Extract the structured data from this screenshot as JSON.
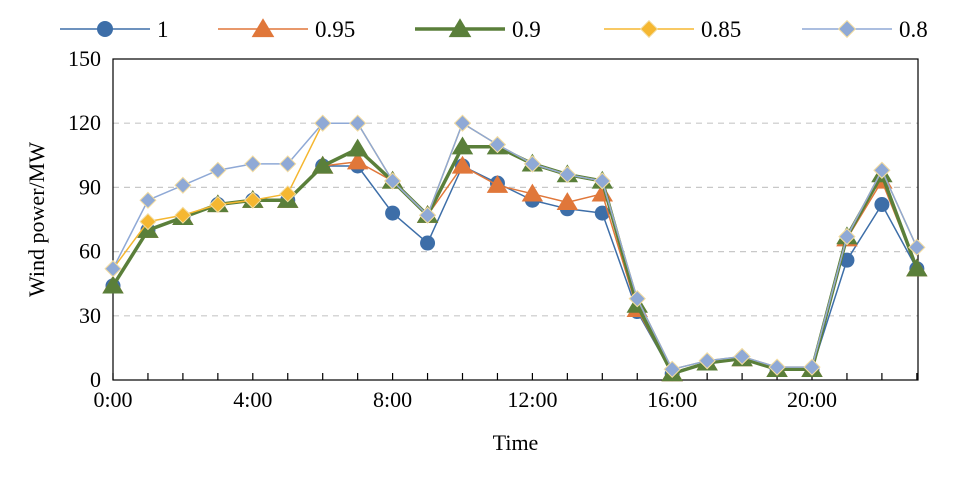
{
  "chart_data": {
    "type": "line",
    "title": "",
    "xlabel": "Time",
    "ylabel": "Wind power/MW",
    "ylim": [
      0,
      150
    ],
    "yticks": [
      0,
      30,
      60,
      90,
      120,
      150
    ],
    "x_tick_labels": [
      "0:00",
      "4:00",
      "8:00",
      "12:00",
      "16:00",
      "20:00"
    ],
    "x_tick_hours": [
      0,
      4,
      8,
      12,
      16,
      20
    ],
    "hours": [
      0,
      1,
      2,
      3,
      4,
      5,
      6,
      7,
      8,
      9,
      10,
      11,
      12,
      13,
      14,
      15,
      16,
      17,
      18,
      19,
      20,
      21,
      22,
      23
    ],
    "grid": "horizontal dashed",
    "legend_position": "top",
    "series": [
      {
        "name": "1",
        "color": "#3d6ea8",
        "marker": "circle",
        "stroke_width": 1.5,
        "values": [
          44,
          70,
          76,
          82,
          84,
          84,
          100,
          100,
          78,
          64,
          100,
          92,
          84,
          80,
          78,
          32,
          3,
          8,
          10,
          5,
          5,
          56,
          82,
          52
        ]
      },
      {
        "name": "0.95",
        "color": "#e0773a",
        "marker": "triangle",
        "stroke_width": 1.5,
        "values": [
          44,
          70,
          76,
          82,
          84,
          84,
          100,
          102,
          93,
          77,
          100,
          91,
          87,
          83,
          87,
          33,
          3,
          8,
          10,
          5,
          5,
          66,
          93,
          52
        ]
      },
      {
        "name": "0.9",
        "color": "#5a7f3a",
        "marker": "triangle",
        "stroke_width": 3.5,
        "values": [
          44,
          70,
          76,
          82,
          84,
          84,
          100,
          108,
          93,
          77,
          109,
          109,
          101,
          96,
          93,
          35,
          3,
          8,
          10,
          5,
          5,
          67,
          96,
          52
        ]
      },
      {
        "name": "0.85",
        "color": "#f5b731",
        "marker": "diamond",
        "stroke_width": 1.5,
        "values": [
          52,
          74,
          77,
          82,
          84,
          87,
          120,
          120,
          93,
          77,
          120,
          110,
          101,
          96,
          93,
          38,
          5,
          9,
          11,
          6,
          6,
          67,
          98,
          62
        ]
      },
      {
        "name": "0.8",
        "color": "#8fa9d6",
        "marker": "diamond",
        "stroke_width": 1.5,
        "values": [
          52,
          84,
          91,
          98,
          101,
          101,
          120,
          120,
          93,
          77,
          120,
          110,
          101,
          96,
          93,
          38,
          5,
          9,
          11,
          6,
          6,
          67,
          98,
          62
        ]
      }
    ]
  }
}
